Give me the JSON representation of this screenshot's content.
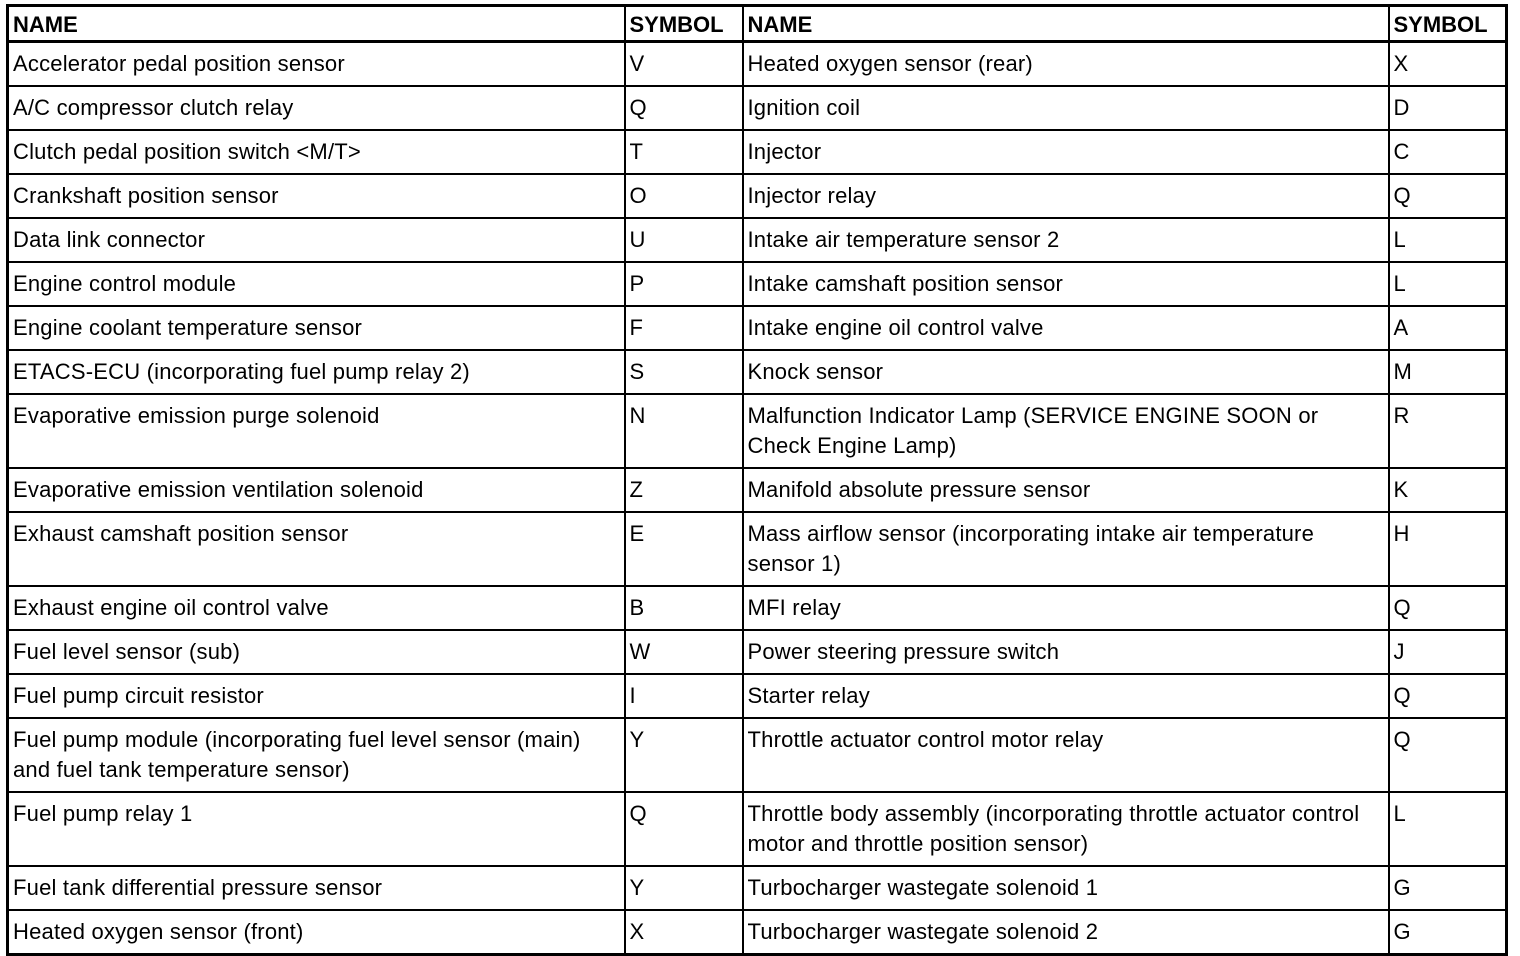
{
  "headers": [
    "NAME",
    "SYMBOL",
    "NAME",
    "SYMBOL"
  ],
  "rows": [
    {
      "name1": "Accelerator pedal position sensor",
      "sym1": "V",
      "name2": "Heated oxygen sensor (rear)",
      "sym2": "X"
    },
    {
      "name1": "A/C compressor clutch relay",
      "sym1": "Q",
      "name2": "Ignition coil",
      "sym2": "D"
    },
    {
      "name1": "Clutch pedal position switch <M/T>",
      "sym1": "T",
      "name2": "Injector",
      "sym2": "C"
    },
    {
      "name1": "Crankshaft position sensor",
      "sym1": "O",
      "name2": "Injector relay",
      "sym2": "Q"
    },
    {
      "name1": "Data link connector",
      "sym1": "U",
      "name2": "Intake air temperature sensor 2",
      "sym2": "L"
    },
    {
      "name1": "Engine control module",
      "sym1": "P",
      "name2": "Intake camshaft position sensor",
      "sym2": "L"
    },
    {
      "name1": "Engine coolant temperature sensor",
      "sym1": "F",
      "name2": "Intake engine oil control valve",
      "sym2": "A"
    },
    {
      "name1": "ETACS-ECU (incorporating fuel pump relay 2)",
      "sym1": "S",
      "name2": "Knock sensor",
      "sym2": "M"
    },
    {
      "name1": "Evaporative emission purge solenoid",
      "sym1": "N",
      "name2": "Malfunction Indicator Lamp (SERVICE ENGINE SOON or Check Engine Lamp)",
      "sym2": "R"
    },
    {
      "name1": "Evaporative emission ventilation solenoid",
      "sym1": "Z",
      "name2": "Manifold absolute pressure sensor",
      "sym2": "K"
    },
    {
      "name1": "Exhaust camshaft position sensor",
      "sym1": "E",
      "name2": "Mass airflow sensor (incorporating intake air temperature sensor 1)",
      "sym2": "H"
    },
    {
      "name1": "Exhaust engine oil control valve",
      "sym1": "B",
      "name2": "MFI relay",
      "sym2": "Q"
    },
    {
      "name1": "Fuel level sensor (sub)",
      "sym1": "W",
      "name2": "Power steering pressure switch",
      "sym2": "J"
    },
    {
      "name1": "Fuel pump circuit resistor",
      "sym1": "I",
      "name2": "Starter relay",
      "sym2": "Q"
    },
    {
      "name1": "Fuel pump module (incorporating fuel level sensor (main) and fuel tank temperature sensor)",
      "sym1": "Y",
      "name2": "Throttle actuator control motor relay",
      "sym2": "Q"
    },
    {
      "name1": "Fuel pump relay 1",
      "sym1": "Q",
      "name2": "Throttle body assembly (incorporating throttle actuator control motor and throttle position sensor)",
      "sym2": "L"
    },
    {
      "name1": "Fuel tank differential pressure sensor",
      "sym1": "Y",
      "name2": "Turbocharger wastegate solenoid 1",
      "sym2": "G"
    },
    {
      "name1": "Heated oxygen sensor (front)",
      "sym1": "X",
      "name2": "Turbocharger wastegate solenoid 2",
      "sym2": "G"
    }
  ]
}
